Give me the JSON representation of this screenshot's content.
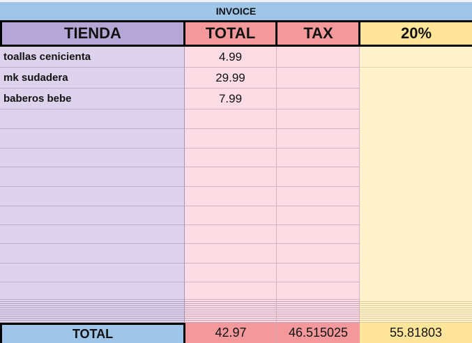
{
  "title": "INVOICE",
  "headers": [
    "TIENDA",
    "TOTAL",
    "TAX",
    "20%"
  ],
  "rows": [
    {
      "tienda": "toallas cenicienta",
      "total": "4.99"
    },
    {
      "tienda": "mk sudadera",
      "total": "29.99"
    },
    {
      "tienda": "baberos bebe",
      "total": "7.99"
    },
    {
      "tienda": "",
      "total": ""
    },
    {
      "tienda": "",
      "total": ""
    },
    {
      "tienda": "",
      "total": ""
    },
    {
      "tienda": "",
      "total": ""
    },
    {
      "tienda": "",
      "total": ""
    },
    {
      "tienda": "",
      "total": ""
    },
    {
      "tienda": "",
      "total": ""
    },
    {
      "tienda": "",
      "total": ""
    },
    {
      "tienda": "",
      "total": ""
    },
    {
      "tienda": "",
      "total": ""
    }
  ],
  "totals": {
    "label": "TOTAL",
    "total": "42.97",
    "tax": "46.515025",
    "pct": "55.81803"
  },
  "colors": {
    "invoice": "#9fc5e8",
    "tienda_header": "#b4a7d6",
    "total_header": "#f4999b",
    "pct_header": "#ffe599",
    "total_label": "#9fc5e8"
  }
}
